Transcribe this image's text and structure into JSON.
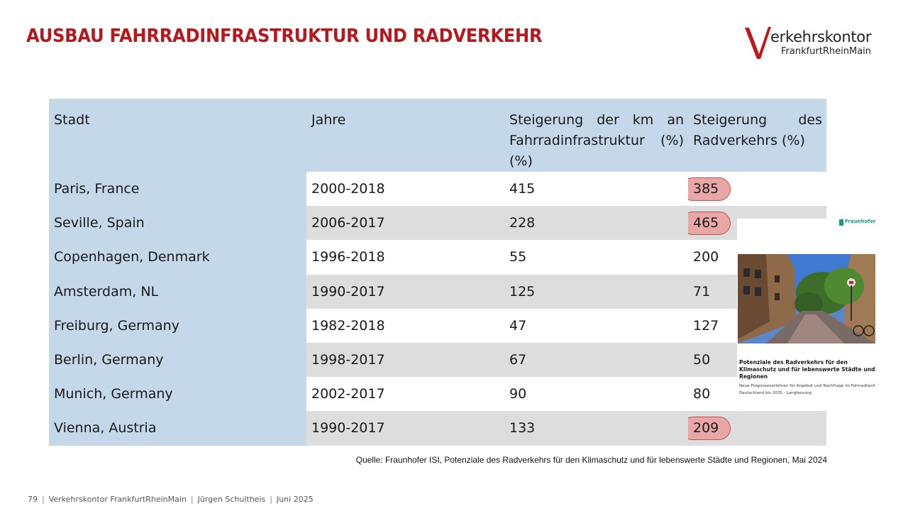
{
  "slide": {
    "title": "AUSBAU FAHRRADINFRASTRUKTUR UND RADVERKEHR"
  },
  "logo": {
    "letter": "V",
    "word": "erkehrskontor",
    "sub": "FrankfurtRheinMain",
    "accent_color": "#c0161c"
  },
  "table": {
    "headers": {
      "city": "Stadt",
      "years": "Jahre",
      "infra": "Steigerung der km an Fahrradinfrastruktur (%) (%)",
      "traffic": "Steigerung des Radverkehrs (%)"
    },
    "rows": [
      {
        "city": "Paris, France",
        "years": "2000-2018",
        "infra": "415",
        "traffic": "385",
        "highlight": true
      },
      {
        "city": "Seville, Spain",
        "years": "2006-2017",
        "infra": "228",
        "traffic": "465",
        "highlight": true
      },
      {
        "city": "Copenhagen, Denmark",
        "years": "1996-2018",
        "infra": "55",
        "traffic": "200",
        "highlight": false
      },
      {
        "city": "Amsterdam, NL",
        "years": "1990-2017",
        "infra": "125",
        "traffic": "71",
        "highlight": false
      },
      {
        "city": "Freiburg, Germany",
        "years": "1982-2018",
        "infra": "47",
        "traffic": "127",
        "highlight": false
      },
      {
        "city": "Berlin, Germany",
        "years": "1998-2017",
        "infra": "67",
        "traffic": "50",
        "highlight": false
      },
      {
        "city": "Munich, Germany",
        "years": "2002-2017",
        "infra": "90",
        "traffic": "80",
        "highlight": false
      },
      {
        "city": "Vienna, Austria",
        "years": "1990-2017",
        "infra": "133",
        "traffic": "209",
        "highlight": true
      }
    ]
  },
  "report": {
    "publisher": "Fraunhofer",
    "title": "Potenziale des Radverkehrs für den Klimaschutz und für lebenswerte Städte und Regionen",
    "subtitle": "Neue Prognoseverfahren für Angebot und Nachfrage im Fahrradland Deutschland bis 2035 - Langfassung"
  },
  "source": "Quelle: Fraunhofer ISI, Potenziale des Radverkehrs für den Klimaschutz und für lebenswerte Städte und Regionen, Mai 2024",
  "footer": {
    "page": "79",
    "org": "Verkehrskontor FrankfurtRheinMain",
    "author": "Jürgen Schultheis",
    "date": "Juni 2025"
  }
}
